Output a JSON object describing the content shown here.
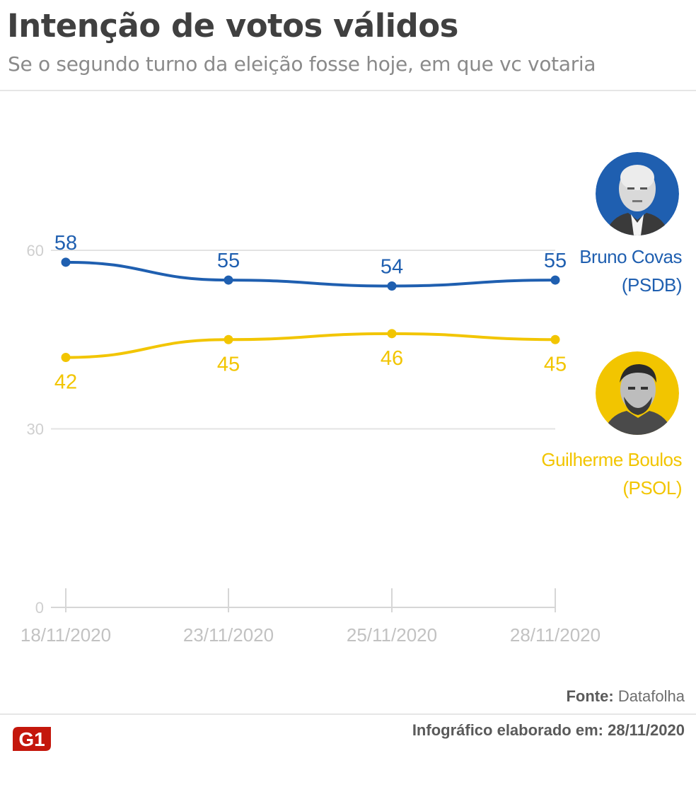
{
  "header": {
    "title": "Intenção de votos válidos",
    "subtitle": "Se o segundo turno da eleição fosse hoje, em que vc votaria"
  },
  "chart_data": {
    "type": "line",
    "categories": [
      "18/11/2020",
      "23/11/2020",
      "25/11/2020",
      "28/11/2020"
    ],
    "y_ticks": [
      0,
      30,
      60
    ],
    "ylim": [
      0,
      60
    ],
    "grid": true,
    "series": [
      {
        "name": "Bruno Covas",
        "party": "(PSDB)",
        "color": "#1f5fb0",
        "values": [
          58,
          55,
          54,
          55
        ]
      },
      {
        "name": "Guilherme Boulos",
        "party": "(PSOL)",
        "color": "#f2c500",
        "values": [
          42,
          45,
          46,
          45
        ]
      }
    ]
  },
  "candidates": [
    {
      "name": "Bruno Covas",
      "party": "(PSDB)",
      "photo_icon": "candidate-photo-icon",
      "ring_color": "#1f5fb0"
    },
    {
      "name": "Guilherme Boulos",
      "party": "(PSOL)",
      "photo_icon": "candidate-photo-icon",
      "ring_color": "#f2c500"
    }
  ],
  "footer": {
    "source_label": "Fonte:",
    "source_value": "Datafolha",
    "credit_label": "Infográfico elaborado em:",
    "credit_date": "28/11/2020",
    "logo_text": "G1",
    "logo_color": "#c4170c"
  }
}
